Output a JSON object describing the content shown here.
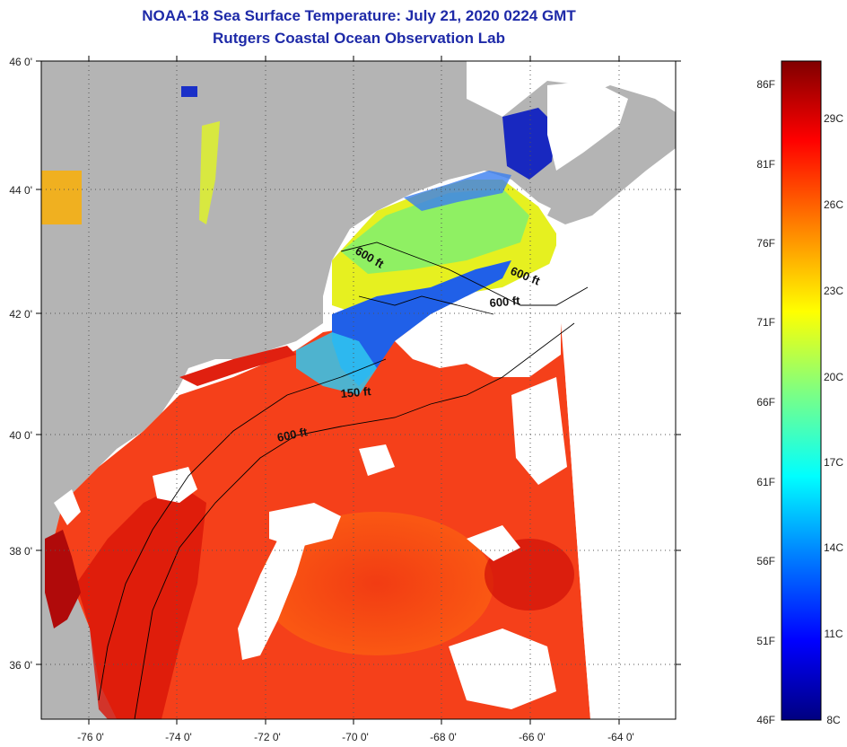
{
  "title": {
    "line1": "NOAA-18 Sea Surface Temperature:  July 21, 2020 0224 GMT",
    "line2": "Rutgers Coastal Ocean Observation Lab"
  },
  "axes": {
    "lat_labels": [
      "46 0'",
      "44 0'",
      "42 0'",
      "40 0'",
      "38 0'",
      "36 0'"
    ],
    "lon_labels": [
      "-76 0'",
      "-74 0'",
      "-72 0'",
      "-70 0'",
      "-68 0'",
      "-66 0'",
      "-64 0'"
    ]
  },
  "isobaths": [
    {
      "label": "600 ft"
    },
    {
      "label": "600 ft"
    },
    {
      "label": "600 ft"
    },
    {
      "label": "150 ft"
    },
    {
      "label": "600 ft"
    }
  ],
  "colorbar": {
    "fahrenheit": [
      "86F",
      "81F",
      "76F",
      "71F",
      "66F",
      "61F",
      "56F",
      "51F",
      "46F"
    ],
    "celsius": [
      "29C",
      "26C",
      "23C",
      "20C",
      "17C",
      "14C",
      "11C",
      "8C"
    ]
  },
  "colors": {
    "land": "#b4b4b4",
    "cloud": "#ffffff",
    "title": "#1e2aa8"
  }
}
